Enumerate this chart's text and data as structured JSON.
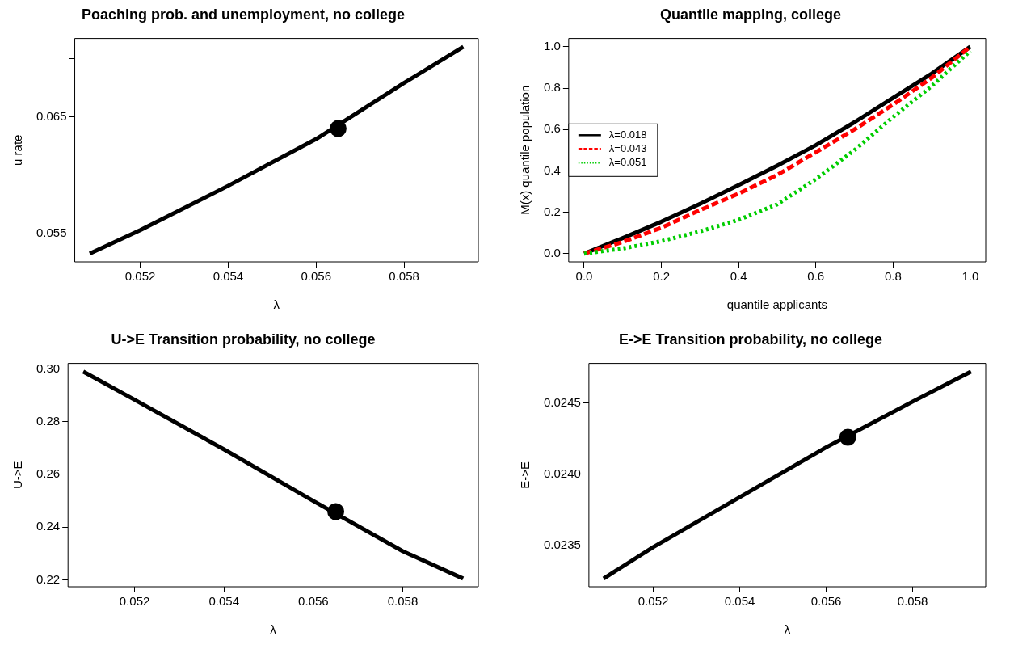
{
  "chart_data": [
    {
      "type": "line",
      "title": "Poaching prob. and unemployment, no college",
      "xlabel": "λ",
      "ylabel": "u rate",
      "xlim": [
        0.05051,
        0.05969
      ],
      "ylim": [
        0.05259,
        0.07171
      ],
      "xticks": [
        0.052,
        0.054,
        0.056,
        0.058
      ],
      "yticks": [
        0.055,
        {
          "value": 0.06,
          "label": null
        },
        0.065,
        {
          "value": 0.07,
          "label": null
        }
      ],
      "series": [
        {
          "color": "#000000",
          "x": [
            0.05085,
            0.052,
            0.054,
            0.056,
            0.058,
            0.05935
          ],
          "values": [
            0.0533,
            0.0553,
            0.0591,
            0.0631,
            0.0679,
            0.071
          ],
          "line_style": "solid"
        },
        {
          "type": "scatter",
          "color": "#000000",
          "x": [
            0.0565
          ],
          "values": [
            0.064
          ],
          "marker": "circle"
        }
      ]
    },
    {
      "type": "line",
      "title": "Quantile mapping, college",
      "xlabel": "quantile applicants",
      "ylabel": "M(x) quantile population",
      "xlim": [
        -0.04,
        1.04
      ],
      "ylim": [
        -0.04,
        1.04
      ],
      "legend": "left",
      "xticks": [
        {
          "value": 0,
          "label": "0.0"
        },
        {
          "value": 0.2,
          "label": "0.2"
        },
        {
          "value": 0.4,
          "label": "0.4"
        },
        {
          "value": 0.6,
          "label": "0.6"
        },
        {
          "value": 0.8,
          "label": "0.8"
        },
        {
          "value": 1,
          "label": "1.0"
        }
      ],
      "yticks": [
        {
          "value": 0,
          "label": "0.0"
        },
        {
          "value": 0.2,
          "label": "0.2"
        },
        {
          "value": 0.4,
          "label": "0.4"
        },
        {
          "value": 0.6,
          "label": "0.6"
        },
        {
          "value": 0.8,
          "label": "0.8"
        },
        {
          "value": 1,
          "label": "1.0"
        }
      ],
      "series": [
        {
          "name": "λ=0.018",
          "color": "#000000",
          "line_style": "solid",
          "x": [
            0,
            0.1,
            0.2,
            0.3,
            0.4,
            0.5,
            0.6,
            0.7,
            0.8,
            0.9,
            1
          ],
          "values": [
            0,
            0.075,
            0.154,
            0.24,
            0.331,
            0.425,
            0.524,
            0.635,
            0.753,
            0.87,
            1
          ]
        },
        {
          "name": "λ=0.043",
          "color": "#ff0000",
          "line_style": "dashed",
          "x": [
            0,
            0.1,
            0.2,
            0.3,
            0.4,
            0.5,
            0.6,
            0.7,
            0.8,
            0.9,
            1
          ],
          "values": [
            0,
            0.056,
            0.125,
            0.21,
            0.29,
            0.38,
            0.49,
            0.6,
            0.72,
            0.85,
            1
          ]
        },
        {
          "name": "λ=0.051",
          "color": "#00cd00",
          "line_style": "dotted",
          "x": [
            0,
            0.1,
            0.2,
            0.3,
            0.4,
            0.5,
            0.6,
            0.7,
            0.8,
            0.9,
            1
          ],
          "values": [
            0,
            0.025,
            0.06,
            0.107,
            0.163,
            0.238,
            0.36,
            0.5,
            0.66,
            0.81,
            0.98
          ]
        }
      ]
    },
    {
      "type": "line",
      "title": "U->E Transition probability, no college",
      "xlabel": "λ",
      "ylabel": "U->E",
      "xlim": [
        0.05051,
        0.05969
      ],
      "ylim": [
        0.2174,
        0.3021
      ],
      "xticks": [
        0.052,
        0.054,
        0.056,
        0.058
      ],
      "yticks": [
        0.22,
        0.24,
        0.26,
        0.28,
        {
          "value": 0.3,
          "label": "0.30"
        }
      ],
      "series": [
        {
          "color": "#000000",
          "line_style": "solid",
          "x": [
            0.05085,
            0.052,
            0.054,
            0.056,
            0.058,
            0.05935
          ],
          "values": [
            0.299,
            0.2883,
            0.2695,
            0.2499,
            0.2309,
            0.2205
          ]
        },
        {
          "type": "scatter",
          "color": "#000000",
          "x": [
            0.0565
          ],
          "values": [
            0.2459
          ],
          "marker": "circle"
        }
      ]
    },
    {
      "type": "line",
      "title": "E->E Transition probability, no college",
      "xlabel": "λ",
      "ylabel": "E->E",
      "xlim": [
        0.05051,
        0.05969
      ],
      "ylim": [
        0.023212,
        0.024778
      ],
      "xticks": [
        0.052,
        0.054,
        0.056,
        0.058
      ],
      "yticks": [
        0.0235,
        {
          "value": 0.024,
          "label": "0.0240"
        },
        0.0245
      ],
      "series": [
        {
          "color": "#000000",
          "line_style": "solid",
          "x": [
            0.05085,
            0.052,
            0.054,
            0.056,
            0.058,
            0.05935
          ],
          "values": [
            0.02327,
            0.02349,
            0.02384,
            0.02419,
            0.02451,
            0.02472
          ]
        },
        {
          "type": "scatter",
          "color": "#000000",
          "x": [
            0.0565
          ],
          "values": [
            0.02426
          ],
          "marker": "circle"
        }
      ]
    }
  ]
}
